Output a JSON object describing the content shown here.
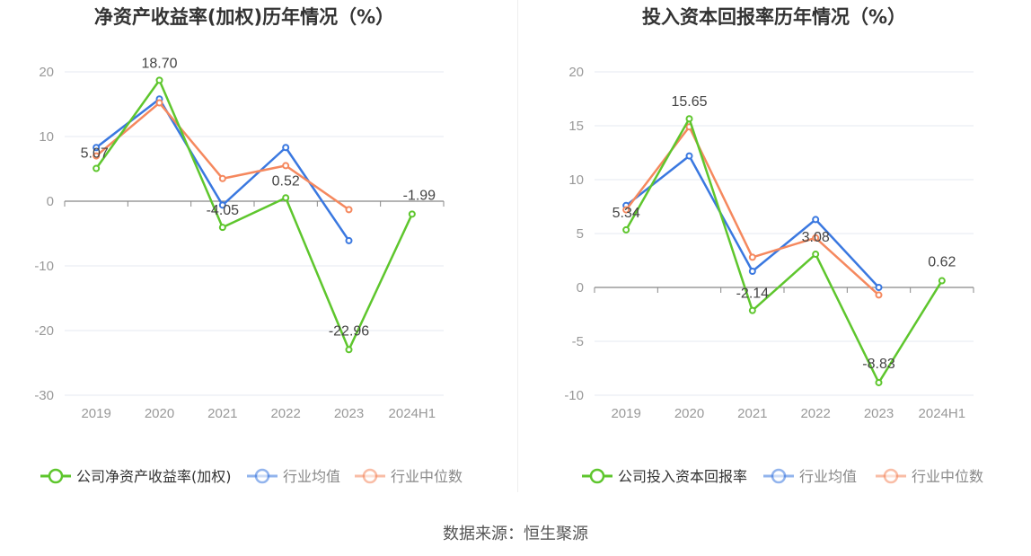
{
  "source_text": "数据来源：恒生聚源",
  "colors": {
    "company": "#5ec62d",
    "avg": "#3a78e0",
    "median": "#f5885e",
    "axis": "#999999",
    "grid": "#e6e9f0",
    "title": "#333333"
  },
  "chart_data": [
    {
      "type": "line",
      "title": "净资产收益率(加权)历年情况（%）",
      "categories": [
        "2019",
        "2020",
        "2021",
        "2022",
        "2023",
        "2024H1"
      ],
      "ylim": [
        -30,
        20
      ],
      "yticks": [
        20,
        10,
        0,
        -10,
        -20,
        -30
      ],
      "grid": true,
      "legend_position": "bottom",
      "series": [
        {
          "name": "公司净资产收益率(加权)",
          "values": [
            5.07,
            18.7,
            -4.05,
            0.52,
            -22.96,
            -1.99
          ],
          "labels": [
            "5.07",
            "18.70",
            "-4.05",
            "0.52",
            "-22.96",
            "-1.99"
          ]
        },
        {
          "name": "行业均值",
          "values": [
            8.3,
            15.8,
            -0.6,
            8.3,
            -6.1,
            null
          ]
        },
        {
          "name": "行业中位数",
          "values": [
            7.0,
            15.2,
            3.5,
            5.5,
            -1.3,
            null
          ]
        }
      ]
    },
    {
      "type": "line",
      "title": "投入资本回报率历年情况（%）",
      "categories": [
        "2019",
        "2020",
        "2021",
        "2022",
        "2023",
        "2024H1"
      ],
      "ylim": [
        -10,
        20
      ],
      "yticks": [
        20,
        15,
        10,
        5,
        0,
        -5,
        -10
      ],
      "grid": true,
      "legend_position": "bottom",
      "series": [
        {
          "name": "公司投入资本回报率",
          "values": [
            5.34,
            15.65,
            -2.14,
            3.08,
            -8.83,
            0.62
          ],
          "labels": [
            "5.34",
            "15.65",
            "-2.14",
            "3.08",
            "-8.83",
            "0.62"
          ]
        },
        {
          "name": "行业均值",
          "values": [
            7.6,
            12.2,
            1.5,
            6.3,
            0.0,
            null
          ]
        },
        {
          "name": "行业中位数",
          "values": [
            7.2,
            14.9,
            2.8,
            4.6,
            -0.7,
            null
          ]
        }
      ]
    }
  ]
}
